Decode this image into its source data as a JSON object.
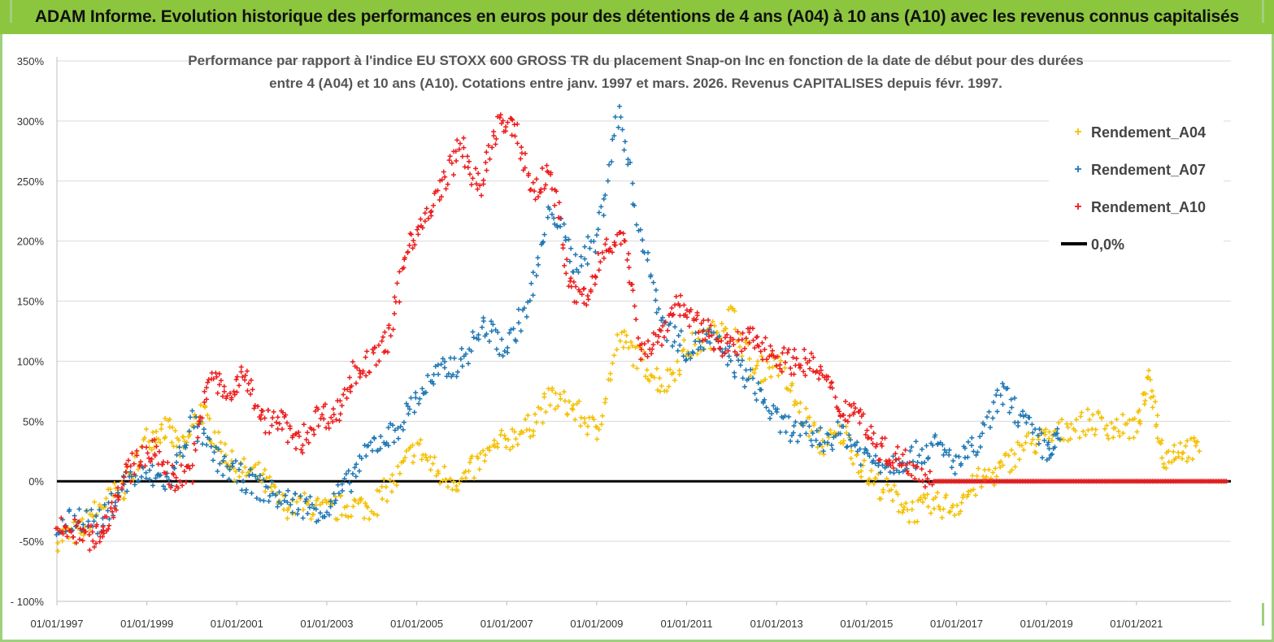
{
  "header": {
    "title": "ADAM Informe. Evolution historique des performances en euros pour des détentions de 4 ans (A04) à 10 ans (A10) avec les revenus connus capitalisés"
  },
  "chart_data": {
    "type": "scatter",
    "title_lines": [
      "Performance par rapport à l'indice EU STOXX 600 GROSS TR  du placement Snap-on Inc en fonction de la date de début pour des durées",
      "entre 4 (A04) et 10 ans (A10). Cotations entre janv. 1997 et mars. 2026. Revenus CAPITALISES depuis févr. 1997."
    ],
    "xlabel": "",
    "ylabel": "",
    "xlim": [
      1997.0,
      2023.1
    ],
    "ylim": [
      -100,
      350
    ],
    "x_ticks": [
      "01/01/1997",
      "01/01/1999",
      "01/01/2001",
      "01/01/2003",
      "01/01/2005",
      "01/01/2007",
      "01/01/2009",
      "01/01/2011",
      "01/01/2013",
      "01/01/2015",
      "01/01/2017",
      "01/01/2019",
      "01/01/2021"
    ],
    "y_ticks": [
      "- 100%",
      "-50%",
      "0%",
      "50%",
      "100%",
      "150%",
      "200%",
      "250%",
      "300%",
      "350%"
    ],
    "grid": "horizontal",
    "legend_position": "top-right",
    "series": [
      {
        "name": "Rendement_A04",
        "color": "#f5c000",
        "marker": "+",
        "x": [
          1997.0,
          1997.5,
          1998.0,
          1998.5,
          1999.0,
          1999.4,
          1999.8,
          2000.2,
          2000.6,
          2001.0,
          2001.5,
          2002.0,
          2002.5,
          2003.0,
          2003.5,
          2004.0,
          2004.5,
          2005.0,
          2005.5,
          2006.0,
          2006.5,
          2007.0,
          2007.5,
          2008.0,
          2008.5,
          2009.0,
          2009.5,
          2010.0,
          2010.5,
          2011.0,
          2011.5,
          2012.0,
          2012.5,
          2013.0,
          2013.5,
          2014.0,
          2014.5,
          2015.0,
          2015.5,
          2016.0,
          2016.5,
          2017.0,
          2017.5,
          2018.0,
          2018.5,
          2019.0,
          2019.5,
          2020.0,
          2020.5,
          2021.0,
          2021.3,
          2021.6,
          2022.0,
          2022.4
        ],
        "y": [
          -47,
          -42,
          -20,
          -5,
          35,
          45,
          25,
          60,
          30,
          10,
          5,
          -20,
          -20,
          -25,
          -20,
          -22,
          0,
          30,
          5,
          0,
          20,
          35,
          45,
          70,
          60,
          40,
          120,
          100,
          80,
          110,
          120,
          140,
          90,
          100,
          60,
          30,
          40,
          5,
          -10,
          -25,
          -20,
          -20,
          0,
          10,
          30,
          35,
          45,
          50,
          45,
          45,
          85,
          20,
          28,
          25
        ]
      },
      {
        "name": "Rendement_A07",
        "color": "#1f77b4",
        "marker": "+",
        "x": [
          1997.0,
          1997.5,
          1998.0,
          1998.5,
          1999.0,
          1999.5,
          2000.0,
          2000.5,
          2001.0,
          2001.5,
          2002.0,
          2002.5,
          2003.0,
          2003.5,
          2004.0,
          2004.5,
          2005.0,
          2005.5,
          2006.0,
          2006.5,
          2007.0,
          2007.5,
          2008.0,
          2008.5,
          2009.0,
          2009.5,
          2010.0,
          2010.5,
          2011.0,
          2011.5,
          2012.0,
          2012.5,
          2013.0,
          2013.5,
          2014.0,
          2014.5,
          2015.0,
          2015.5,
          2016.0,
          2016.5,
          2017.0,
          2017.5,
          2018.0,
          2018.5,
          2019.0,
          2019.3
        ],
        "y": [
          -40,
          -30,
          -35,
          0,
          5,
          0,
          50,
          20,
          5,
          -5,
          -15,
          -20,
          -25,
          0,
          30,
          40,
          70,
          90,
          100,
          130,
          110,
          150,
          230,
          180,
          200,
          310,
          200,
          130,
          110,
          120,
          100,
          80,
          50,
          40,
          35,
          40,
          20,
          15,
          20,
          30,
          15,
          30,
          75,
          50,
          25,
          35
        ]
      },
      {
        "name": "Rendement_A10",
        "color": "#ee1c1c",
        "marker": "+",
        "x": [
          1997.0,
          1997.4,
          1997.8,
          1998.1,
          1998.4,
          1998.8,
          1999.2,
          1999.6,
          2000.0,
          2000.4,
          2000.8,
          2001.2,
          2001.6,
          2002.0,
          2002.4,
          2002.8,
          2003.2,
          2003.6,
          2004.0,
          2004.4,
          2004.8,
          2005.2,
          2005.6,
          2006.0,
          2006.4,
          2006.8,
          2007.2,
          2007.6,
          2008.0,
          2008.4,
          2008.8,
          2009.2,
          2009.6,
          2010.0,
          2010.4,
          2010.8,
          2011.2,
          2011.6,
          2012.0,
          2012.4,
          2012.8,
          2013.2,
          2013.6,
          2014.0,
          2014.4,
          2014.8,
          2015.2,
          2015.6,
          2016.0,
          2016.5,
          2017.0,
          2017.5,
          2018.0,
          2018.5,
          2019.0,
          2019.5,
          2020.0,
          2020.5,
          2021.0,
          2021.5,
          2022.0,
          2022.5,
          2023.0
        ],
        "y": [
          -40,
          -42,
          -48,
          -35,
          -5,
          20,
          25,
          0,
          10,
          90,
          70,
          90,
          50,
          50,
          30,
          55,
          55,
          90,
          100,
          120,
          200,
          215,
          250,
          280,
          240,
          300,
          290,
          240,
          260,
          160,
          150,
          200,
          200,
          110,
          120,
          150,
          130,
          120,
          110,
          120,
          110,
          100,
          100,
          90,
          60,
          60,
          30,
          20,
          15,
          0,
          0,
          0,
          0,
          0,
          0,
          0,
          0,
          0,
          0,
          0,
          0,
          0,
          0
        ]
      },
      {
        "name": "0,0%",
        "color": "#000000",
        "marker": "line",
        "x": [
          1997.0,
          2023.1
        ],
        "y": [
          0,
          0
        ]
      }
    ]
  }
}
